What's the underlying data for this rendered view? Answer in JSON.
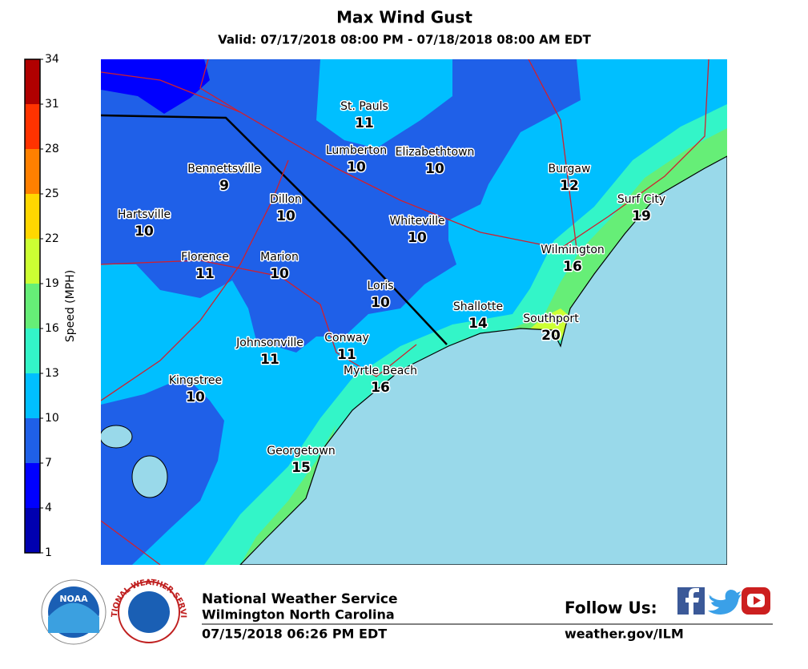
{
  "header": {
    "title": "Max Wind Gust",
    "subtitle": "Valid: 07/17/2018 08:00 PM - 07/18/2018 08:00 AM EDT"
  },
  "legend": {
    "label": "Speed (MPH)",
    "ticks": [
      1,
      4,
      7,
      10,
      13,
      16,
      19,
      22,
      25,
      28,
      31,
      34
    ],
    "colors": [
      "#0000b0",
      "#0000ff",
      "#1f60e8",
      "#00bfff",
      "#33f5c8",
      "#66ee77",
      "#ccff33",
      "#ffd700",
      "#ff8000",
      "#ff3300",
      "#b00000"
    ]
  },
  "cities": [
    {
      "name": "St. Pauls",
      "value": 11
    },
    {
      "name": "Lumberton",
      "value": 10
    },
    {
      "name": "Elizabethtown",
      "value": 10
    },
    {
      "name": "Bennettsville",
      "value": 9
    },
    {
      "name": "Burgaw",
      "value": 12
    },
    {
      "name": "Dillon",
      "value": 10
    },
    {
      "name": "Surf City",
      "value": 19
    },
    {
      "name": "Hartsville",
      "value": 10
    },
    {
      "name": "Whiteville",
      "value": 10
    },
    {
      "name": "Florence",
      "value": 11
    },
    {
      "name": "Marion",
      "value": 10
    },
    {
      "name": "Wilmington",
      "value": 16
    },
    {
      "name": "Loris",
      "value": 10
    },
    {
      "name": "Shallotte",
      "value": 14
    },
    {
      "name": "Southport",
      "value": 20
    },
    {
      "name": "Johnsonville",
      "value": 11
    },
    {
      "name": "Conway",
      "value": 11
    },
    {
      "name": "Myrtle Beach",
      "value": 16
    },
    {
      "name": "Kingstree",
      "value": 10
    },
    {
      "name": "Georgetown",
      "value": 15
    }
  ],
  "footer": {
    "office": "National Weather Service",
    "location": "Wilmington North Carolina",
    "issued": "07/15/2018 06:26 PM EDT",
    "follow": "Follow Us:",
    "url": "weather.gov/ILM",
    "noaa_logo": "NOAA",
    "nws_logo": "NATIONAL WEATHER SERVICE"
  }
}
